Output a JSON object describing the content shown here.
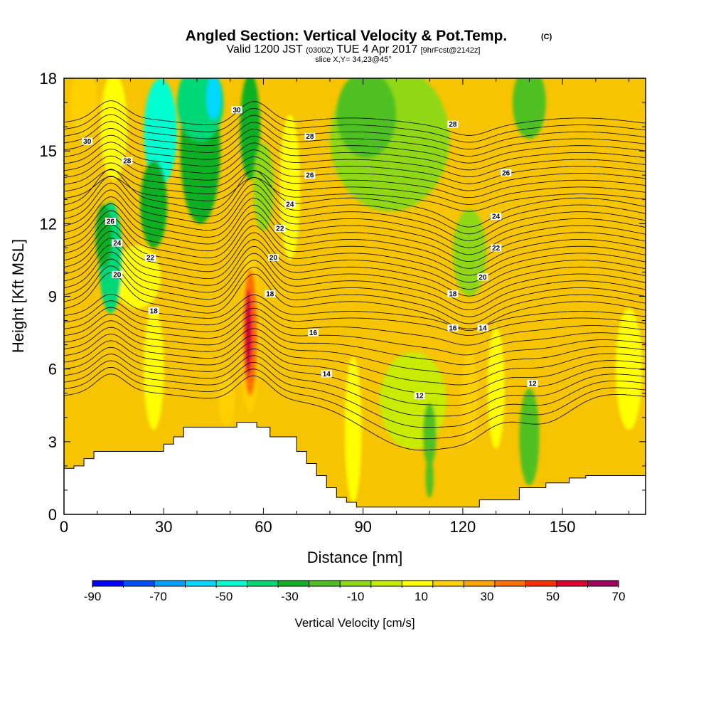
{
  "header": {
    "title_main": "Angled Section: Vertical Velocity & Pot.Temp.",
    "title_mark": "(C)",
    "valid_prefix": "Valid 1200 JST",
    "valid_zulu": "(0300Z)",
    "valid_date": "TUE 4 Apr 2017",
    "valid_fcst": "[9hrFcst@2142z]",
    "slice": "slice X,Y= 34,23@45°"
  },
  "chart_data": {
    "type": "heatmap",
    "xlabel": "Distance [nm]",
    "ylabel": "Height [Kft MSL]",
    "xlim": [
      0,
      175
    ],
    "ylim": [
      0,
      18
    ],
    "x_ticks": [
      "0",
      "30",
      "60",
      "90",
      "120",
      "150"
    ],
    "x_tick_values": [
      0,
      30,
      60,
      90,
      120,
      150
    ],
    "y_ticks": [
      "0",
      "3",
      "6",
      "9",
      "12",
      "15",
      "18"
    ],
    "y_tick_values": [
      0,
      3,
      6,
      9,
      12,
      15,
      18
    ],
    "colorbar": {
      "title": "Vertical Velocity [cm/s]",
      "labels": [
        "-90",
        "-70",
        "-50",
        "-30",
        "-10",
        "10",
        "30",
        "50",
        "70"
      ],
      "bounds": [
        -90,
        -80,
        -70,
        -60,
        -50,
        -40,
        -30,
        -20,
        -10,
        0,
        10,
        20,
        30,
        40,
        50,
        60,
        70
      ],
      "colors": [
        "#0000ff",
        "#0050ff",
        "#00a0ff",
        "#00d8ff",
        "#00ffd0",
        "#00d878",
        "#10b020",
        "#50c020",
        "#90d818",
        "#c8ec00",
        "#ffff00",
        "#ffd000",
        "#ffa500",
        "#ff7000",
        "#ff3000",
        "#dc0030",
        "#a00060"
      ]
    },
    "background_color": "#f6c400",
    "terrain_profile": {
      "x": [
        0,
        3,
        3,
        6,
        6,
        9,
        9,
        12,
        12,
        22,
        22,
        30,
        30,
        33,
        33,
        36,
        36,
        42,
        42,
        48,
        48,
        52,
        52,
        58,
        58,
        62,
        62,
        65,
        65,
        70,
        70,
        73,
        73,
        76,
        76,
        79,
        79,
        82,
        82,
        85,
        85,
        88,
        88,
        95,
        95,
        112,
        112,
        125,
        125,
        130,
        130,
        137,
        137,
        145,
        145,
        152,
        152,
        157,
        157,
        160,
        160,
        175
      ],
      "height_kft": [
        1.9,
        1.9,
        2.0,
        2.0,
        2.3,
        2.3,
        2.6,
        2.6,
        2.6,
        2.6,
        2.6,
        2.6,
        2.9,
        2.9,
        3.2,
        3.2,
        3.6,
        3.6,
        3.6,
        3.6,
        3.6,
        3.6,
        3.8,
        3.8,
        3.6,
        3.6,
        3.2,
        3.2,
        3.2,
        3.2,
        2.6,
        2.6,
        2.1,
        2.1,
        1.6,
        1.6,
        1.1,
        1.1,
        0.7,
        0.7,
        0.5,
        0.5,
        0.3,
        0.3,
        0.3,
        0.3,
        0.3,
        0.3,
        0.6,
        0.6,
        0.6,
        0.6,
        1.1,
        1.1,
        1.3,
        1.3,
        1.5,
        1.5,
        1.6,
        1.6,
        1.6,
        1.6
      ]
    },
    "velocity_features": [
      {
        "x": 56,
        "y": 7.5,
        "rx": 3.0,
        "ry": 3.3,
        "value": 20
      },
      {
        "x": 56,
        "y": 7.5,
        "rx": 2.2,
        "ry": 2.6,
        "value": 45
      },
      {
        "x": 55.5,
        "y": 7.5,
        "rx": 1.2,
        "ry": 1.8,
        "value": 65
      },
      {
        "x": 49,
        "y": 4.7,
        "rx": 2.5,
        "ry": 1.1,
        "value": 20
      },
      {
        "x": 22,
        "y": 9.8,
        "rx": 7,
        "ry": 1.3,
        "value": 12
      },
      {
        "x": 68,
        "y": 13.5,
        "rx": 3,
        "ry": 3,
        "value": 12
      },
      {
        "x": 122,
        "y": 4.8,
        "rx": 2.5,
        "ry": 2.0,
        "value": 22
      },
      {
        "x": 130,
        "y": 5.2,
        "rx": 2.5,
        "ry": 2.5,
        "value": 12
      },
      {
        "x": 6,
        "y": 17,
        "rx": 4,
        "ry": 1.4,
        "value": 22
      },
      {
        "x": 15,
        "y": 16,
        "rx": 4,
        "ry": 2.2,
        "value": 12
      },
      {
        "x": 27,
        "y": 6.0,
        "rx": 3,
        "ry": 2.5,
        "value": 12
      },
      {
        "x": 87,
        "y": 3.5,
        "rx": 2.5,
        "ry": 3,
        "value": 12
      },
      {
        "x": 170,
        "y": 6,
        "rx": 4,
        "ry": 2.5,
        "value": 12
      },
      {
        "x": 105,
        "y": 4.7,
        "rx": 10,
        "ry": 2.0,
        "value": 2
      },
      {
        "x": 110,
        "y": 3.3,
        "rx": 2,
        "ry": 1.3,
        "value": -12
      },
      {
        "x": 110,
        "y": 1.5,
        "rx": 1.2,
        "ry": 0.8,
        "value": -12
      },
      {
        "x": 140,
        "y": 3.2,
        "rx": 3,
        "ry": 2,
        "value": -12
      },
      {
        "x": 98,
        "y": 15.5,
        "rx": 18,
        "ry": 3.0,
        "value": -10
      },
      {
        "x": 91,
        "y": 16.5,
        "rx": 9,
        "ry": 1.8,
        "value": -15
      },
      {
        "x": 140,
        "y": 17.0,
        "rx": 5,
        "ry": 1.5,
        "value": -15
      },
      {
        "x": 122,
        "y": 10.8,
        "rx": 5,
        "ry": 1.8,
        "value": -10
      },
      {
        "x": 56,
        "y": 16,
        "rx": 3,
        "ry": 2.2,
        "value": -28
      },
      {
        "x": 60,
        "y": 13.5,
        "rx": 3,
        "ry": 1.8,
        "value": -10
      },
      {
        "x": 41,
        "y": 15,
        "rx": 6,
        "ry": 3,
        "value": -22
      },
      {
        "x": 41,
        "y": 17,
        "rx": 7,
        "ry": 1.6,
        "value": -40
      },
      {
        "x": 45,
        "y": 17.2,
        "rx": 2.2,
        "ry": 0.9,
        "value": -55
      },
      {
        "x": 29,
        "y": 15.8,
        "rx": 5,
        "ry": 2.2,
        "value": -42
      },
      {
        "x": 27,
        "y": 12.8,
        "rx": 4,
        "ry": 1.8,
        "value": -25
      },
      {
        "x": 14,
        "y": 10.6,
        "rx": 3.5,
        "ry": 2.3,
        "value": -35
      },
      {
        "x": 12,
        "y": 11.5,
        "rx": 2.5,
        "ry": 1.3,
        "value": -22
      }
    ],
    "contour_labels": [
      {
        "text": "30",
        "x": 7,
        "y": 15.4
      },
      {
        "text": "30",
        "x": 52,
        "y": 16.7
      },
      {
        "text": "28",
        "x": 19,
        "y": 14.6
      },
      {
        "text": "28",
        "x": 74,
        "y": 15.6
      },
      {
        "text": "28",
        "x": 117,
        "y": 16.1
      },
      {
        "text": "26",
        "x": 14,
        "y": 12.1
      },
      {
        "text": "26",
        "x": 74,
        "y": 14.0
      },
      {
        "text": "26",
        "x": 133,
        "y": 14.1
      },
      {
        "text": "24",
        "x": 16,
        "y": 11.2
      },
      {
        "text": "24",
        "x": 68,
        "y": 12.8
      },
      {
        "text": "24",
        "x": 130,
        "y": 12.3
      },
      {
        "text": "22",
        "x": 26,
        "y": 10.6
      },
      {
        "text": "22",
        "x": 65,
        "y": 11.8
      },
      {
        "text": "22",
        "x": 130,
        "y": 11.0
      },
      {
        "text": "20",
        "x": 16,
        "y": 9.9
      },
      {
        "text": "20",
        "x": 63,
        "y": 10.6
      },
      {
        "text": "20",
        "x": 126,
        "y": 9.8
      },
      {
        "text": "18",
        "x": 27,
        "y": 8.4
      },
      {
        "text": "18",
        "x": 62,
        "y": 9.1
      },
      {
        "text": "18",
        "x": 117,
        "y": 9.1
      },
      {
        "text": "16",
        "x": 75,
        "y": 7.5
      },
      {
        "text": "16",
        "x": 117,
        "y": 7.7
      },
      {
        "text": "14",
        "x": 79,
        "y": 5.8
      },
      {
        "text": "14",
        "x": 126,
        "y": 7.7
      },
      {
        "text": "12",
        "x": 107,
        "y": 4.9
      },
      {
        "text": "12",
        "x": 141,
        "y": 5.4
      }
    ],
    "potential_temperature": {
      "levels": [
        10,
        10.5,
        11,
        11.5,
        12,
        12.5,
        13,
        13.5,
        14,
        14.5,
        15,
        15.5,
        16,
        16.5,
        17,
        17.5,
        18,
        18.5,
        19,
        19.5,
        20,
        20.5,
        21,
        21.5,
        22,
        22.5,
        23,
        23.5,
        24,
        24.5,
        25,
        25.5,
        26,
        26.5,
        27,
        27.5,
        28,
        28.5,
        29,
        29.5,
        30
      ]
    }
  }
}
